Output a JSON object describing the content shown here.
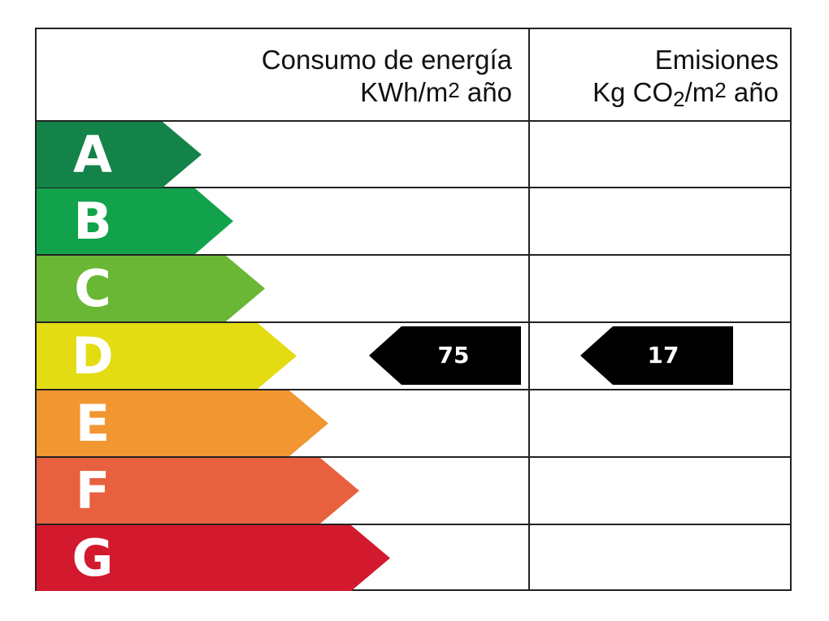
{
  "header": {
    "consumo_title": "Consumo de energía",
    "consumo_unit_pre": "KWh/m",
    "consumo_unit_sup": "2",
    "consumo_unit_post": " año",
    "emisiones_title": "Emisiones",
    "emisiones_unit_pre": "Kg CO",
    "emisiones_unit_sub": "2",
    "emisiones_unit_mid": "/m",
    "emisiones_unit_sup": "2",
    "emisiones_unit_post": " año"
  },
  "classes": [
    {
      "letter": "A",
      "color": "#13834a"
    },
    {
      "letter": "B",
      "color": "#12a24b"
    },
    {
      "letter": "C",
      "color": "#69b734"
    },
    {
      "letter": "D",
      "color": "#e3dc13"
    },
    {
      "letter": "E",
      "color": "#f29631"
    },
    {
      "letter": "F",
      "color": "#e7613f"
    },
    {
      "letter": "G",
      "color": "#d3192e"
    }
  ],
  "rating": {
    "class": "D",
    "consumo_value": "75",
    "emisiones_value": "17",
    "indicator_color": "#000000"
  }
}
